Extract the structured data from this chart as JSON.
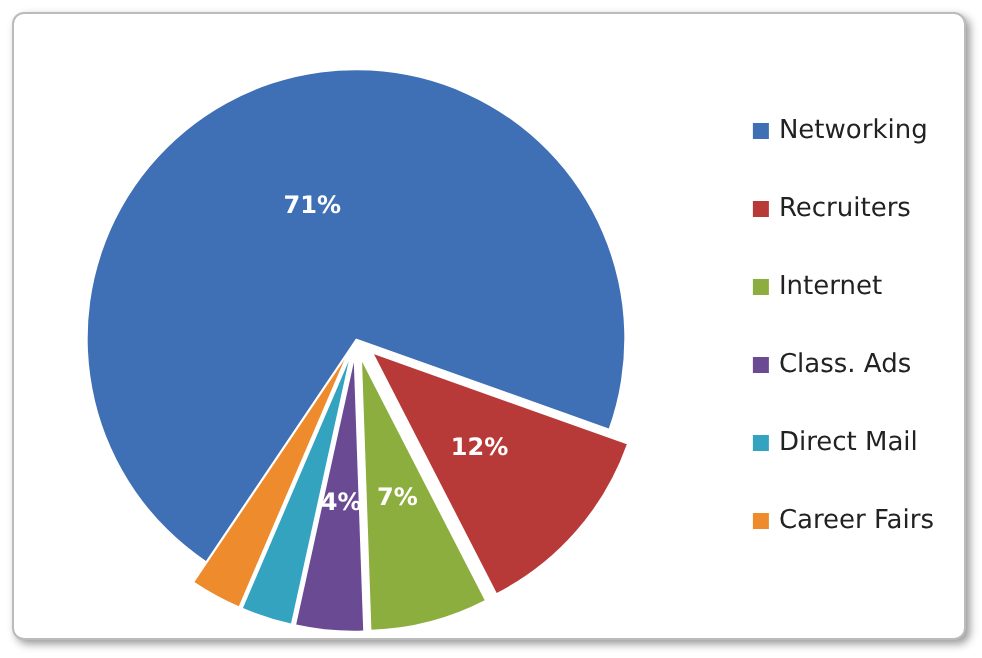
{
  "chart_data": {
    "type": "pie",
    "categories": [
      "Networking",
      "Recruiters",
      "Internet",
      "Class. Ads",
      "Direct Mail",
      "Career Fairs"
    ],
    "values": [
      71,
      12,
      7,
      4,
      3,
      3
    ],
    "colors": [
      "#3f6fb5",
      "#b83a38",
      "#8cae3f",
      "#6b4a94",
      "#34a3c0",
      "#ee8b2d"
    ],
    "value_labels": [
      "71%",
      "12%",
      "7%",
      "4%",
      null,
      null
    ],
    "legend": "right"
  }
}
